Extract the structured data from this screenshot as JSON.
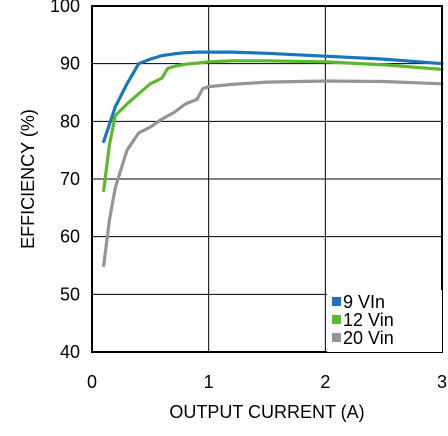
{
  "chart_data": {
    "type": "line",
    "xlabel": "OUTPUT CURRENT (A)",
    "ylabel": "EFFICIENCY (%)",
    "xlim": [
      0,
      3
    ],
    "ylim": [
      40,
      100
    ],
    "xticks": [
      0,
      1,
      2,
      3
    ],
    "yticks": [
      40,
      50,
      60,
      70,
      80,
      90,
      100
    ],
    "xtick_labels": [
      "0",
      "1",
      "2",
      "3"
    ],
    "ytick_labels": [
      "40",
      "50",
      "60",
      "70",
      "80",
      "90",
      "100"
    ],
    "grid": true,
    "legend_position": "bottom-right",
    "series": [
      {
        "name": "9 VIn",
        "color": "#1b75bc",
        "x": [
          0.1,
          0.2,
          0.3,
          0.4,
          0.5,
          0.6,
          0.7,
          0.8,
          0.9,
          1.0,
          1.2,
          1.5,
          2.0,
          2.5,
          3.0
        ],
        "y": [
          76.5,
          82.5,
          86.5,
          90.0,
          90.8,
          91.4,
          91.7,
          91.9,
          92.0,
          92.0,
          92.0,
          91.8,
          91.3,
          90.8,
          90.0
        ]
      },
      {
        "name": "12 Vin",
        "color": "#5cb82e",
        "x": [
          0.1,
          0.15,
          0.2,
          0.3,
          0.4,
          0.5,
          0.55,
          0.6,
          0.65,
          0.7,
          0.8,
          0.9,
          1.0,
          1.2,
          1.5,
          2.0,
          2.5,
          3.0
        ],
        "y": [
          68.0,
          76.0,
          81.0,
          83.0,
          84.8,
          86.5,
          87.0,
          87.5,
          89.2,
          89.5,
          89.9,
          90.1,
          90.3,
          90.5,
          90.5,
          90.3,
          89.8,
          89.0
        ]
      },
      {
        "name": "20 Vin",
        "color": "#959595",
        "x": [
          0.1,
          0.15,
          0.2,
          0.3,
          0.4,
          0.5,
          0.6,
          0.7,
          0.8,
          0.9,
          0.95,
          1.0,
          1.2,
          1.5,
          2.0,
          2.5,
          3.0
        ],
        "y": [
          55.0,
          63.0,
          68.5,
          75.0,
          78.0,
          79.0,
          80.4,
          81.5,
          83.0,
          83.8,
          85.7,
          86.0,
          86.4,
          86.8,
          87.0,
          86.9,
          86.5
        ]
      }
    ]
  }
}
